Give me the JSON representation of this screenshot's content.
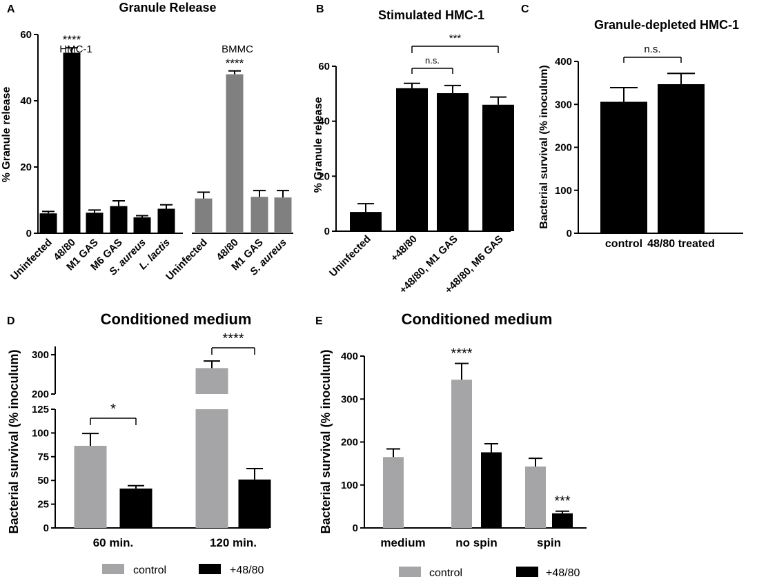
{
  "colors": {
    "black": "#000000",
    "gray_a": "#808080",
    "gray_de": "#a5a5a7",
    "text": "#000000"
  },
  "chart_data": [
    {
      "panel_label": "A",
      "type": "bar",
      "title": "Granule Release",
      "xlabel": "",
      "ylabel": "% Granule release",
      "ylim": [
        0,
        60
      ],
      "yticks": [
        "0",
        "20",
        "40",
        "60"
      ],
      "groups": [
        {
          "name": "HMC-1",
          "categories": [
            "Uninfected",
            "48/80",
            "M1 GAS",
            "M6 GAS",
            "S. aureus",
            "L. lactis"
          ],
          "italic": [
            false,
            false,
            false,
            false,
            true,
            true
          ],
          "values": [
            6,
            54.5,
            6.2,
            8.2,
            4.8,
            7.4
          ],
          "errors": [
            0.6,
            1.5,
            0.8,
            1.6,
            0.5,
            1.2
          ],
          "color": "#000000",
          "stars": [
            "",
            "****",
            "",
            "",
            "",
            ""
          ]
        },
        {
          "name": "BMMC",
          "categories": [
            "Uninfected",
            "48/80",
            "M1 GAS",
            "S. aureus"
          ],
          "italic": [
            false,
            false,
            false,
            true
          ],
          "values": [
            10.5,
            48,
            11,
            10.8
          ],
          "errors": [
            1.9,
            1.0,
            1.9,
            2.1
          ],
          "color": "#808080",
          "stars": [
            "",
            "****",
            "",
            ""
          ]
        }
      ]
    },
    {
      "panel_label": "B",
      "type": "bar",
      "title": "Stimulated HMC-1",
      "ylabel": "% Granule release",
      "ylim": [
        0,
        60
      ],
      "yticks": [
        "0",
        "20",
        "40",
        "60"
      ],
      "categories": [
        "Uninfected",
        "+48/80",
        "+48/80, M1 GAS",
        "+48/80, M6 GAS"
      ],
      "values": [
        7,
        52,
        50.2,
        46
      ],
      "errors": [
        3,
        1.8,
        2.8,
        2.8
      ],
      "color": "#000000",
      "comparisons": [
        {
          "from": 1,
          "to": 2,
          "label": "n.s."
        },
        {
          "from": 1,
          "to": 3,
          "label": "***"
        }
      ]
    },
    {
      "panel_label": "C",
      "type": "bar",
      "title": "Granule-depleted HMC-1",
      "ylabel": "Bacterial survival (% inoculum)",
      "ylim": [
        0,
        400
      ],
      "yticks": [
        "0",
        "100",
        "200",
        "300",
        "400"
      ],
      "categories": [
        "control",
        "48/80 treated"
      ],
      "values": [
        306,
        347
      ],
      "errors": [
        33,
        25
      ],
      "color": "#000000",
      "comparisons": [
        {
          "from": 0,
          "to": 1,
          "label": "n.s."
        }
      ]
    },
    {
      "panel_label": "D",
      "type": "bar",
      "title": "Conditioned medium",
      "ylabel": "Bacterial survival (% inoculum)",
      "broken_axis": {
        "lower": [
          0,
          125
        ],
        "upper": [
          200,
          300
        ]
      },
      "yticks_lower": [
        "0",
        "25",
        "50",
        "75",
        "100",
        "125"
      ],
      "yticks_upper": [
        "200",
        "300"
      ],
      "categories": [
        "60 min.",
        "120 min."
      ],
      "series": [
        {
          "name": "control",
          "values": [
            86.5,
            266
          ],
          "errors": [
            13,
            18
          ],
          "color": "#a5a5a7"
        },
        {
          "name": "+48/80",
          "values": [
            41.5,
            51
          ],
          "errors": [
            3,
            11.5
          ],
          "color": "#000000"
        }
      ],
      "comparisons": [
        {
          "category": 0,
          "label": "*"
        },
        {
          "category": 1,
          "label": "****"
        }
      ],
      "legend": [
        "control",
        "+48/80"
      ]
    },
    {
      "panel_label": "E",
      "type": "bar",
      "title": "Conditioned medium",
      "ylabel": "Bacterial survival (% inoculum)",
      "ylim": [
        0,
        400
      ],
      "yticks": [
        "0",
        "100",
        "200",
        "300",
        "400"
      ],
      "categories": [
        "medium",
        "no spin",
        "spin"
      ],
      "series": [
        {
          "name": "control",
          "values": [
            165,
            345,
            143
          ],
          "errors": [
            19,
            38,
            19
          ],
          "color": "#a5a5a7"
        },
        {
          "name": "+48/80",
          "values": [
            null,
            176,
            34
          ],
          "errors": [
            null,
            20,
            5
          ],
          "color": "#000000"
        }
      ],
      "stars": [
        {
          "category": 1,
          "series": 0,
          "label": "****"
        },
        {
          "category": 2,
          "series": 1,
          "label": "***"
        }
      ],
      "legend": [
        "control",
        "+48/80"
      ]
    }
  ]
}
